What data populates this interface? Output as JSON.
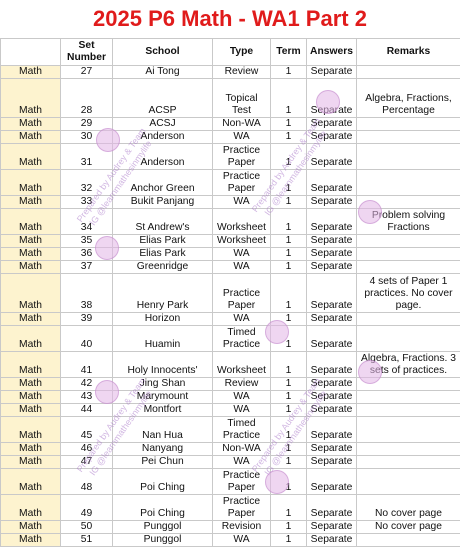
{
  "title": "2025 P6 Math - WA1 Part 2",
  "headers": {
    "subject": "",
    "set": "Set Number",
    "school": "School",
    "type": "Type",
    "term": "Term",
    "answers": "Answers",
    "remarks": "Remarks"
  },
  "watermark": {
    "line1": "Prepared by Audrey & Team",
    "line2": "IG @learnmathesinmylife"
  },
  "rows": [
    {
      "subject": "Math",
      "set": "27",
      "school": "Ai Tong",
      "type": "Review",
      "term": "1",
      "answers": "Separate",
      "remarks": ""
    },
    {
      "subject": "Math",
      "set": "28",
      "school": "ACSP",
      "type": "Topical Test",
      "term": "1",
      "answers": "Separate",
      "remarks": "Algebra, Fractions, Percentage"
    },
    {
      "subject": "Math",
      "set": "29",
      "school": "ACSJ",
      "type": "Non-WA",
      "term": "1",
      "answers": "Separate",
      "remarks": ""
    },
    {
      "subject": "Math",
      "set": "30",
      "school": "Anderson",
      "type": "WA",
      "term": "1",
      "answers": "Separate",
      "remarks": ""
    },
    {
      "subject": "Math",
      "set": "31",
      "school": "Anderson",
      "type": "Practice Paper",
      "term": "1",
      "answers": "Separate",
      "remarks": ""
    },
    {
      "subject": "Math",
      "set": "32",
      "school": "Anchor Green",
      "type": "Practice Paper",
      "term": "1",
      "answers": "Separate",
      "remarks": ""
    },
    {
      "subject": "Math",
      "set": "33",
      "school": "Bukit Panjang",
      "type": "WA",
      "term": "1",
      "answers": "Separate",
      "remarks": ""
    },
    {
      "subject": "Math",
      "set": "34",
      "school": "St Andrew's",
      "type": "Worksheet",
      "term": "1",
      "answers": "Separate",
      "remarks": "Problem solving Fractions"
    },
    {
      "subject": "Math",
      "set": "35",
      "school": "Elias Park",
      "type": "Worksheet",
      "term": "1",
      "answers": "Separate",
      "remarks": ""
    },
    {
      "subject": "Math",
      "set": "36",
      "school": "Elias Park",
      "type": "WA",
      "term": "1",
      "answers": "Separate",
      "remarks": ""
    },
    {
      "subject": "Math",
      "set": "37",
      "school": "Greenridge",
      "type": "WA",
      "term": "1",
      "answers": "Separate",
      "remarks": ""
    },
    {
      "subject": "Math",
      "set": "38",
      "school": "Henry Park",
      "type": "Practice Paper",
      "term": "1",
      "answers": "Separate",
      "remarks": "4 sets of Paper 1 practices. No cover page."
    },
    {
      "subject": "Math",
      "set": "39",
      "school": "Horizon",
      "type": "WA",
      "term": "1",
      "answers": "Separate",
      "remarks": ""
    },
    {
      "subject": "Math",
      "set": "40",
      "school": "Huamin",
      "type": "Timed Practice",
      "term": "1",
      "answers": "Separate",
      "remarks": ""
    },
    {
      "subject": "Math",
      "set": "41",
      "school": "Holy Innocents'",
      "type": "Worksheet",
      "term": "1",
      "answers": "Separate",
      "remarks": "Algebra, Fractions. 3 sets of practices."
    },
    {
      "subject": "Math",
      "set": "42",
      "school": "Jing Shan",
      "type": "Review",
      "term": "1",
      "answers": "Separate",
      "remarks": ""
    },
    {
      "subject": "Math",
      "set": "43",
      "school": "Marymount",
      "type": "WA",
      "term": "1",
      "answers": "Separate",
      "remarks": ""
    },
    {
      "subject": "Math",
      "set": "44",
      "school": "Montfort",
      "type": "WA",
      "term": "1",
      "answers": "Separate",
      "remarks": ""
    },
    {
      "subject": "Math",
      "set": "45",
      "school": "Nan Hua",
      "type": "Timed Practice",
      "term": "1",
      "answers": "Separate",
      "remarks": ""
    },
    {
      "subject": "Math",
      "set": "46",
      "school": "Nanyang",
      "type": "Non-WA",
      "term": "1",
      "answers": "Separate",
      "remarks": ""
    },
    {
      "subject": "Math",
      "set": "47",
      "school": "Pei Chun",
      "type": "WA",
      "term": "1",
      "answers": "Separate",
      "remarks": ""
    },
    {
      "subject": "Math",
      "set": "48",
      "school": "Poi Ching",
      "type": "Practice Paper",
      "term": "1",
      "answers": "Separate",
      "remarks": ""
    },
    {
      "subject": "Math",
      "set": "49",
      "school": "Poi Ching",
      "type": "Practice Paper",
      "term": "1",
      "answers": "Separate",
      "remarks": "No cover page"
    },
    {
      "subject": "Math",
      "set": "50",
      "school": "Punggol",
      "type": "Revision",
      "term": "1",
      "answers": "Separate",
      "remarks": "No cover page"
    },
    {
      "subject": "Math",
      "set": "51",
      "school": "Punggol",
      "type": "WA",
      "term": "1",
      "answers": "Separate",
      "remarks": ""
    }
  ]
}
